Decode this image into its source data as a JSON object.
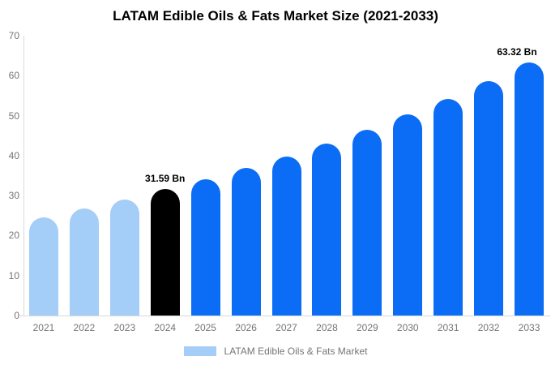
{
  "title": "LATAM Edible Oils & Fats Market Size (2021-2033)",
  "legend": {
    "label": "LATAM Edible Oils & Fats Market",
    "swatch_color": "#a4cdf8"
  },
  "colors": {
    "historical_bar": "#a4cdf8",
    "base_year_bar": "#000000",
    "forecast_bar": "#0b6df5",
    "axis_line": "#d9d9d9",
    "tick_text": "#757575",
    "value_label_text": "#000000",
    "background": "#ffffff"
  },
  "chart_data": {
    "type": "bar",
    "title": "LATAM Edible Oils & Fats Market Size (2021-2033)",
    "categories": [
      "2021",
      "2022",
      "2023",
      "2024",
      "2025",
      "2026",
      "2027",
      "2028",
      "2029",
      "2030",
      "2031",
      "2032",
      "2033"
    ],
    "values": [
      24.6,
      26.8,
      29.0,
      31.59,
      34.13,
      36.87,
      39.83,
      43.03,
      46.49,
      50.22,
      54.25,
      58.61,
      63.32
    ],
    "bar_colors": [
      "#a4cdf8",
      "#a4cdf8",
      "#a4cdf8",
      "#000000",
      "#0b6df5",
      "#0b6df5",
      "#0b6df5",
      "#0b6df5",
      "#0b6df5",
      "#0b6df5",
      "#0b6df5",
      "#0b6df5",
      "#0b6df5"
    ],
    "data_labels": [
      {
        "index": 3,
        "text": "31.59 Bn"
      },
      {
        "index": 12,
        "text": "63.32 Bn"
      }
    ],
    "unit": "Bn",
    "xlabel": "",
    "ylabel": "",
    "ylim": [
      0,
      70
    ],
    "yticks": [
      0,
      10,
      20,
      30,
      40,
      50,
      60,
      70
    ],
    "grid": false,
    "legend_position": "bottom",
    "legend_entries": [
      "LATAM Edible Oils & Fats Market"
    ]
  }
}
